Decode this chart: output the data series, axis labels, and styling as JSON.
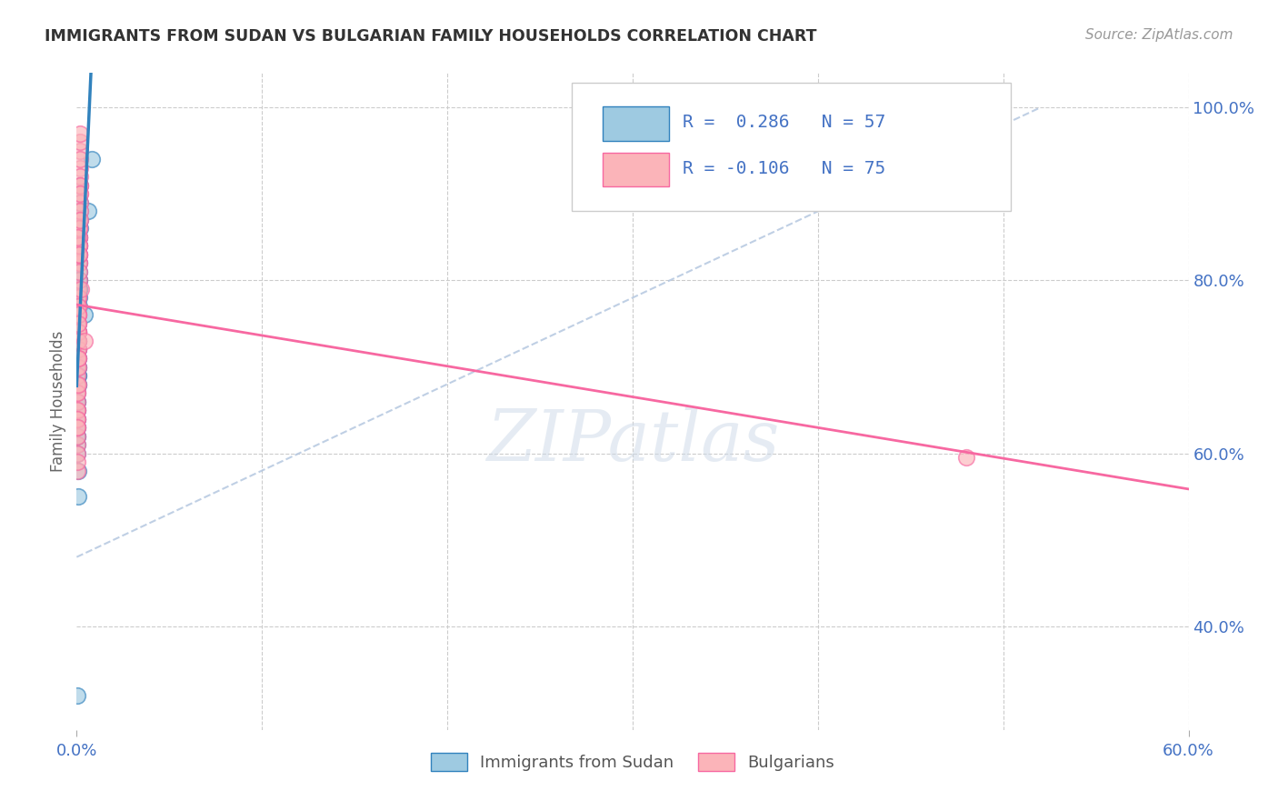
{
  "title": "IMMIGRANTS FROM SUDAN VS BULGARIAN FAMILY HOUSEHOLDS CORRELATION CHART",
  "source": "Source: ZipAtlas.com",
  "ylabel": "Family Households",
  "legend_label1": "Immigrants from Sudan",
  "legend_label2": "Bulgarians",
  "blue_color": "#9ecae1",
  "pink_color": "#fbb4b9",
  "blue_line_color": "#3182bd",
  "pink_line_color": "#f768a1",
  "blue_edge_color": "#9ecae1",
  "pink_edge_color": "#fbb4b9",
  "axis_color": "#4472c4",
  "grid_color": "#cccccc",
  "xlim": [
    0.0,
    0.6
  ],
  "ylim": [
    0.28,
    1.04
  ],
  "yticks": [
    0.4,
    0.6,
    0.8,
    1.0
  ],
  "ytick_labels": [
    "40.0%",
    "60.0%",
    "80.0%",
    "100.0%"
  ],
  "xtick_labels": [
    "0.0%",
    "60.0%"
  ],
  "xtick_vals": [
    0.0,
    0.6
  ],
  "sudan_x": [
    0.0005,
    0.0008,
    0.0012,
    0.0006,
    0.0015,
    0.0009,
    0.0011,
    0.0018,
    0.0004,
    0.0007,
    0.001,
    0.0005,
    0.0008,
    0.0014,
    0.0011,
    0.0004,
    0.0007,
    0.0017,
    0.0005,
    0.001,
    0.0007,
    0.0004,
    0.0013,
    0.0008,
    0.0011,
    0.0005,
    0.0019,
    0.0007,
    0.0012,
    0.0004,
    0.0016,
    0.0008,
    0.0005,
    0.0011,
    0.0007,
    0.0004,
    0.0015,
    0.001,
    0.0008,
    0.0005,
    0.0011,
    0.0007,
    0.0004,
    0.002,
    0.0008,
    0.0004,
    0.0011,
    0.0007,
    0.0014,
    0.0005,
    0.004,
    0.006,
    0.008,
    0.0007,
    0.0009,
    0.0004,
    0.0006
  ],
  "sudan_y": [
    0.72,
    0.78,
    0.82,
    0.68,
    0.85,
    0.74,
    0.8,
    0.88,
    0.65,
    0.7,
    0.76,
    0.63,
    0.71,
    0.84,
    0.79,
    0.66,
    0.73,
    0.87,
    0.64,
    0.77,
    0.69,
    0.62,
    0.83,
    0.72,
    0.78,
    0.67,
    0.89,
    0.74,
    0.81,
    0.65,
    0.86,
    0.71,
    0.64,
    0.79,
    0.7,
    0.61,
    0.85,
    0.76,
    0.72,
    0.63,
    0.77,
    0.68,
    0.6,
    0.91,
    0.73,
    0.62,
    0.8,
    0.69,
    0.84,
    0.66,
    0.76,
    0.88,
    0.94,
    0.58,
    0.75,
    0.32,
    0.55
  ],
  "bulgarian_x": [
    0.0005,
    0.0012,
    0.0008,
    0.0016,
    0.0004,
    0.0012,
    0.0008,
    0.0004,
    0.0016,
    0.0008,
    0.0012,
    0.0004,
    0.0008,
    0.002,
    0.0004,
    0.0012,
    0.0008,
    0.0016,
    0.0004,
    0.0012,
    0.0008,
    0.0004,
    0.0016,
    0.0012,
    0.0008,
    0.0004,
    0.002,
    0.0008,
    0.0012,
    0.0004,
    0.0016,
    0.0008,
    0.0004,
    0.0012,
    0.0008,
    0.0004,
    0.0016,
    0.0012,
    0.0008,
    0.0004,
    0.0012,
    0.0008,
    0.0004,
    0.0016,
    0.0008,
    0.0004,
    0.0012,
    0.0008,
    0.002,
    0.0004,
    0.0012,
    0.0008,
    0.0004,
    0.0016,
    0.0008,
    0.0004,
    0.0012,
    0.0024,
    0.0008,
    0.0004,
    0.0016,
    0.0008,
    0.0004,
    0.0012,
    0.0008,
    0.0004,
    0.002,
    0.0008,
    0.0004,
    0.0012,
    0.0008,
    0.0004,
    0.004,
    0.48,
    0.0004
  ],
  "bulgarian_y": [
    0.88,
    0.82,
    0.78,
    0.91,
    0.75,
    0.85,
    0.72,
    0.68,
    0.93,
    0.79,
    0.84,
    0.71,
    0.76,
    0.95,
    0.73,
    0.87,
    0.74,
    0.9,
    0.7,
    0.83,
    0.77,
    0.65,
    0.92,
    0.86,
    0.73,
    0.69,
    0.96,
    0.78,
    0.85,
    0.67,
    0.89,
    0.75,
    0.66,
    0.82,
    0.72,
    0.64,
    0.88,
    0.84,
    0.74,
    0.61,
    0.8,
    0.7,
    0.62,
    0.91,
    0.76,
    0.63,
    0.83,
    0.71,
    0.97,
    0.68,
    0.86,
    0.77,
    0.67,
    0.9,
    0.74,
    0.65,
    0.84,
    0.79,
    0.73,
    0.64,
    0.87,
    0.76,
    0.63,
    0.83,
    0.71,
    0.6,
    0.94,
    0.75,
    0.58,
    0.81,
    0.68,
    0.59,
    0.73,
    0.595,
    0.85
  ],
  "ref_line_x": [
    0.0,
    0.52
  ],
  "ref_line_y": [
    0.48,
    1.0
  ],
  "blue_trend_x": [
    0.0,
    0.01
  ],
  "pink_trend_x": [
    0.0,
    0.6
  ],
  "blue_trend_intercept": 0.695,
  "blue_trend_slope": 25.0,
  "pink_trend_intercept": 0.695,
  "pink_trend_slope": -0.09
}
